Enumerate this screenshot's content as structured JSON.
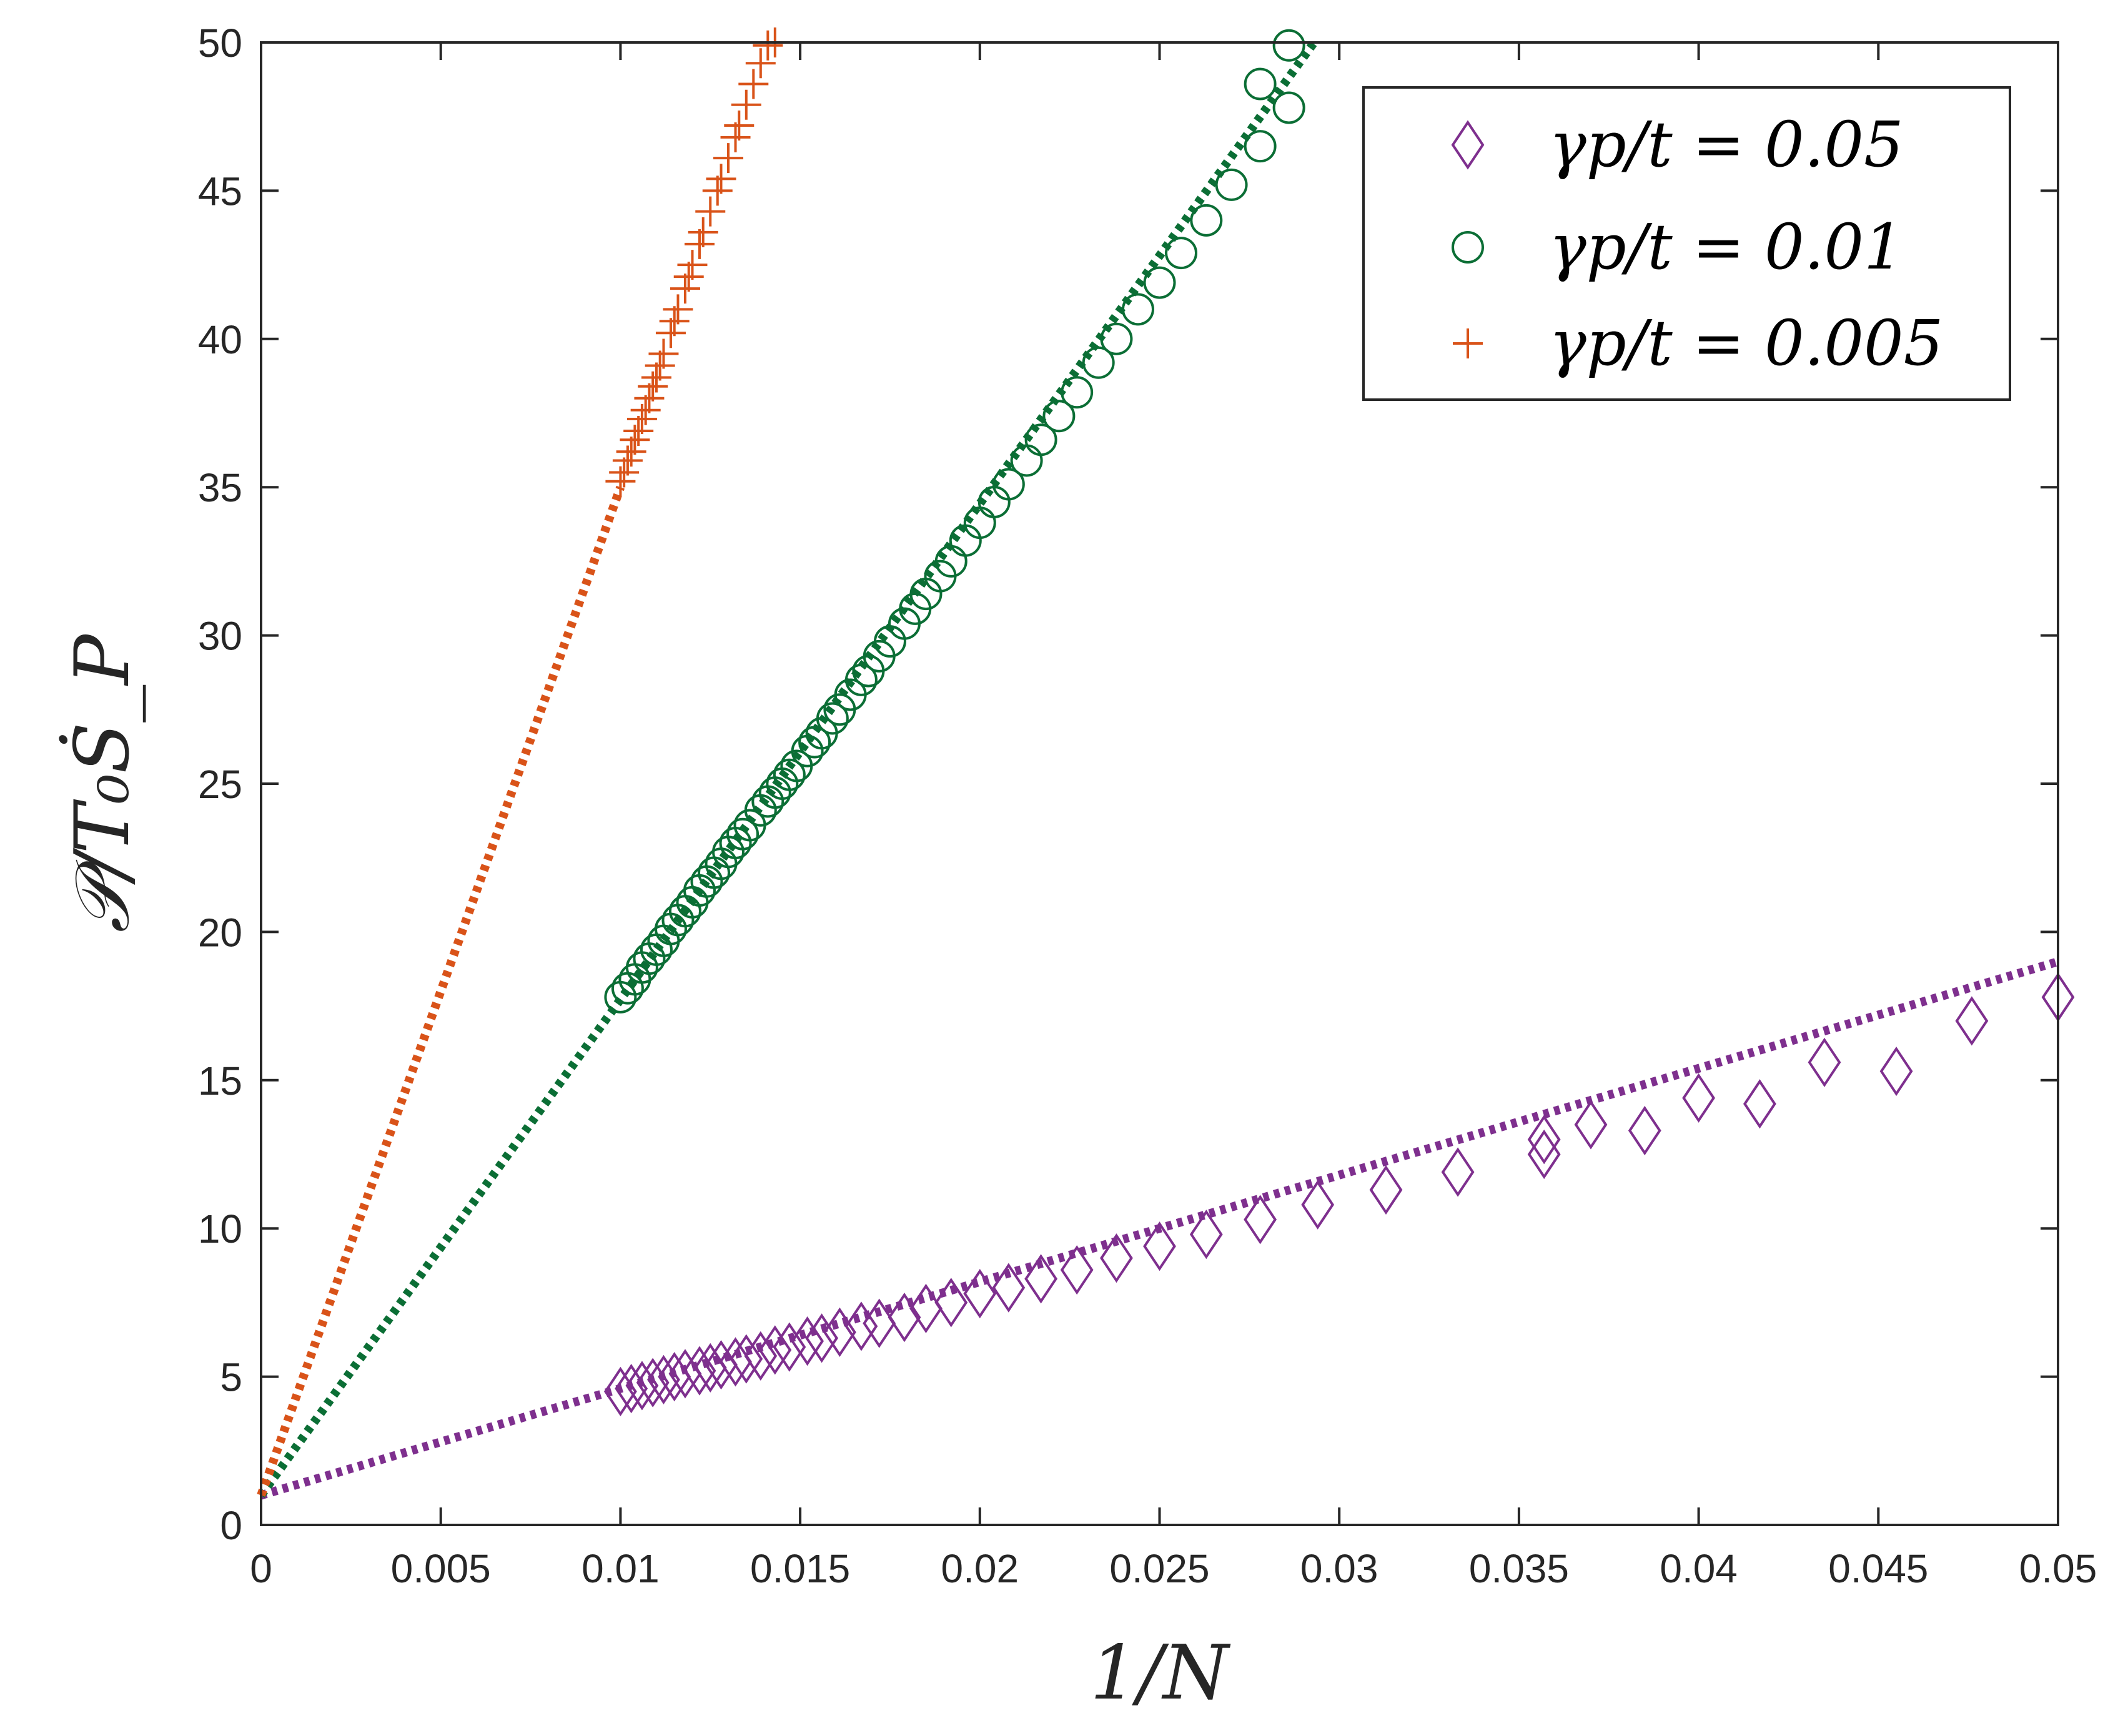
{
  "chart_data": {
    "type": "scatter",
    "xlabel": "1/N",
    "ylabel": "𝒫/T₀Ṡ_P",
    "xlim": [
      0,
      0.05
    ],
    "ylim": [
      0,
      50
    ],
    "xticks": [
      "0",
      "0.005",
      "0.01",
      "0.015",
      "0.02",
      "0.025",
      "0.03",
      "0.035",
      "0.04",
      "0.045",
      "0.05"
    ],
    "yticks": [
      "0",
      "5",
      "10",
      "15",
      "20",
      "25",
      "30",
      "35",
      "40",
      "45",
      "50"
    ],
    "legend_position": "top-right",
    "grid": false,
    "series": [
      {
        "name": "γp/t = 0.05",
        "marker": "diamond",
        "color": "#7E2F8E",
        "fit_line": {
          "x": [
            0,
            0.05
          ],
          "y": [
            1.0,
            19.0
          ],
          "style": "dotted"
        },
        "x": [
          0.01,
          0.0103,
          0.0106,
          0.0109,
          0.0112,
          0.0115,
          0.0118,
          0.0122,
          0.0125,
          0.0128,
          0.0132,
          0.0135,
          0.0139,
          0.0143,
          0.0147,
          0.0152,
          0.0156,
          0.0161,
          0.0167,
          0.0172,
          0.0179,
          0.0185,
          0.0192,
          0.02,
          0.0208,
          0.0217,
          0.0227,
          0.0238,
          0.025,
          0.0263,
          0.0278,
          0.0294,
          0.0313,
          0.0333,
          0.0357,
          0.0385,
          0.0417,
          0.0455,
          0.05
        ],
        "y": [
          4.5,
          4.6,
          4.7,
          4.8,
          4.9,
          5.0,
          5.1,
          5.2,
          5.3,
          5.4,
          5.5,
          5.6,
          5.7,
          5.9,
          6.0,
          6.2,
          6.3,
          6.5,
          6.7,
          6.8,
          7.0,
          7.3,
          7.5,
          7.8,
          8.0,
          8.3,
          8.6,
          9.0,
          9.4,
          9.8,
          10.3,
          10.8,
          11.3,
          11.9,
          12.5,
          13.3,
          14.2,
          15.3,
          17.8
        ],
        "x_extra": [
          0.0357,
          0.037,
          0.04,
          0.0435,
          0.0476
        ],
        "y_extra": [
          13.0,
          13.5,
          14.4,
          15.6,
          17.0
        ]
      },
      {
        "name": "γp/t = 0.01",
        "marker": "circle",
        "color": "#0B6E35",
        "fit_line": {
          "x": [
            0,
            0.0293
          ],
          "y": [
            1.0,
            50.0
          ],
          "style": "dotted"
        },
        "x": [
          0.01,
          0.0102,
          0.0104,
          0.0106,
          0.0108,
          0.011,
          0.0112,
          0.0114,
          0.0116,
          0.0118,
          0.012,
          0.0122,
          0.0124,
          0.0126,
          0.0128,
          0.013,
          0.0132,
          0.0134,
          0.0136,
          0.0139,
          0.0141,
          0.0143,
          0.0145,
          0.0147,
          0.0149,
          0.0152,
          0.0154,
          0.0156,
          0.0159,
          0.0161,
          0.0164,
          0.0167,
          0.0169,
          0.0172,
          0.0175,
          0.0179,
          0.0182,
          0.0185,
          0.0189,
          0.0192,
          0.0196,
          0.02,
          0.0204,
          0.0208,
          0.0213,
          0.0217,
          0.0222,
          0.0227,
          0.0233,
          0.0238,
          0.0244,
          0.025,
          0.0256,
          0.0263,
          0.027,
          0.0278,
          0.0286
        ],
        "y": [
          17.8,
          18.1,
          18.4,
          18.8,
          19.1,
          19.4,
          19.7,
          20.1,
          20.4,
          20.7,
          21.0,
          21.4,
          21.7,
          22.0,
          22.3,
          22.7,
          23.0,
          23.3,
          23.6,
          24.1,
          24.4,
          24.7,
          25.0,
          25.3,
          25.6,
          26.1,
          26.4,
          26.7,
          27.2,
          27.5,
          28.0,
          28.5,
          28.8,
          29.3,
          29.8,
          30.4,
          30.9,
          31.4,
          32.0,
          32.5,
          33.2,
          33.8,
          34.5,
          35.1,
          35.9,
          36.6,
          37.4,
          38.2,
          39.2,
          40.0,
          41.0,
          41.9,
          42.9,
          44.0,
          45.2,
          46.5,
          47.8
        ],
        "x_extra": [
          0.0278,
          0.0286
        ],
        "y_extra": [
          48.6,
          49.9
        ]
      },
      {
        "name": "γp/t = 0.005",
        "marker": "plus",
        "color": "#D95319",
        "fit_line": {
          "x": [
            0,
            0.01
          ],
          "y": [
            1.0,
            35.0
          ],
          "style": "dotted"
        },
        "x": [
          0.01,
          0.0101,
          0.0102,
          0.0103,
          0.0104,
          0.0105,
          0.0106,
          0.0107,
          0.0108,
          0.0109,
          0.011,
          0.0111,
          0.0112,
          0.0114,
          0.0115,
          0.0116,
          0.0118,
          0.0119,
          0.012,
          0.0122,
          0.0123,
          0.0125,
          0.0127,
          0.0128,
          0.013,
          0.0132,
          0.0133,
          0.0135,
          0.0137,
          0.0139,
          0.0141,
          0.0143
        ],
        "y": [
          35.2,
          35.5,
          35.9,
          36.2,
          36.6,
          36.9,
          37.3,
          37.6,
          38.0,
          38.4,
          38.7,
          39.1,
          39.5,
          40.2,
          40.6,
          41.0,
          41.7,
          42.1,
          42.5,
          43.2,
          43.6,
          44.3,
          45.0,
          45.4,
          46.1,
          46.8,
          47.2,
          47.9,
          48.6,
          49.3,
          49.9,
          50.0
        ]
      }
    ]
  }
}
